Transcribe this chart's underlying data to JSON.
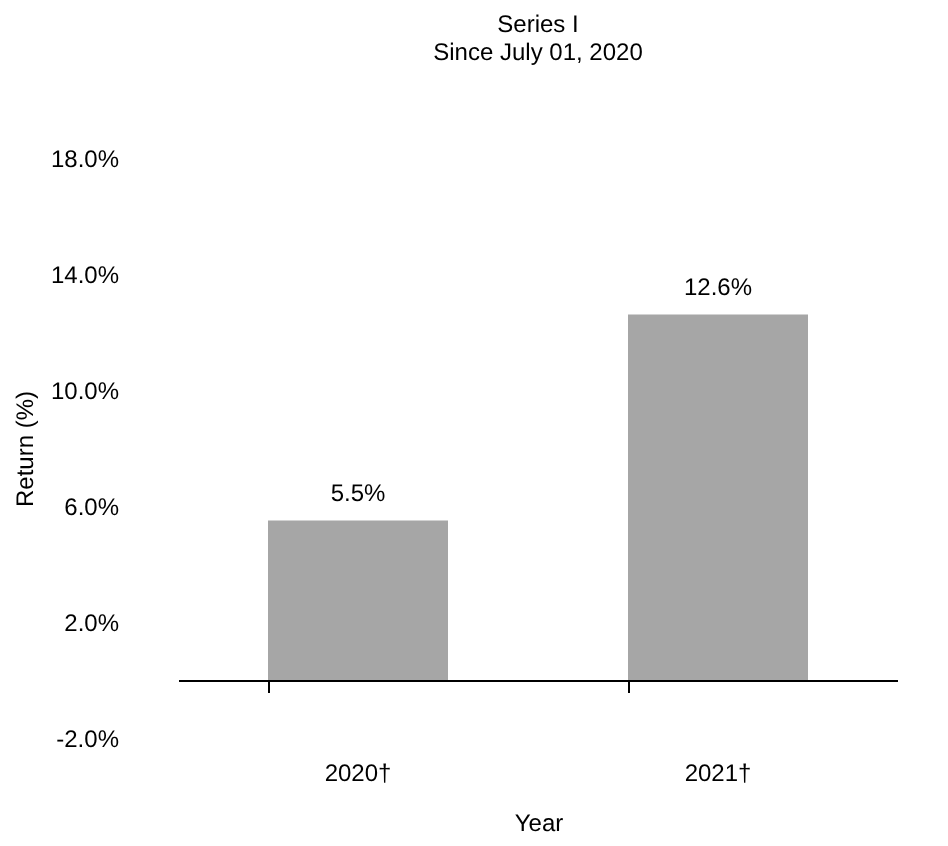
{
  "chart_data": {
    "type": "bar",
    "title": "Series I",
    "subtitle": "Since July 01, 2020",
    "xlabel": "Year",
    "ylabel": "Return (%)",
    "categories": [
      "2020†",
      "2021†"
    ],
    "values": [
      5.5,
      12.6
    ],
    "value_labels": [
      "5.5%",
      "12.6%"
    ],
    "color": "#a6a6a6",
    "ylim": [
      -2,
      18
    ],
    "yticks": [
      {
        "value": -2,
        "label": "-2.0%"
      },
      {
        "value": 2,
        "label": "2.0%"
      },
      {
        "value": 6,
        "label": "6.0%"
      },
      {
        "value": 10,
        "label": "10.0%"
      },
      {
        "value": 14,
        "label": "14.0%"
      },
      {
        "value": 18,
        "label": "18.0%"
      }
    ],
    "grid": false
  }
}
